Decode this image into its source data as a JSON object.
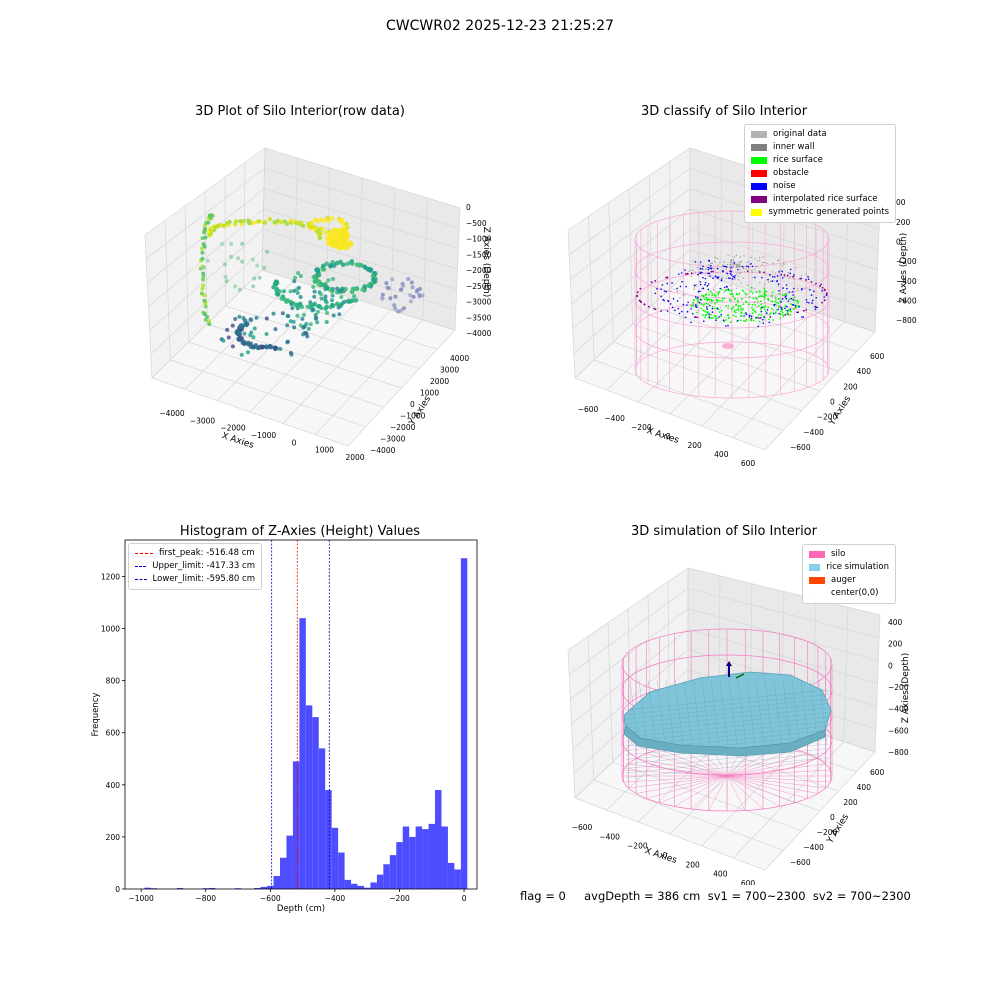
{
  "figure": {
    "suptitle": "CWCWR02 2025-12-23 21:25:27",
    "status_text": "flag = 0     avgDepth = 386 cm  sv1 = 700~2300  sv2 = 700~2300"
  },
  "chart_data": [
    {
      "type": "scatter",
      "projection": "3d",
      "title": "3D Plot of Silo Interior(row data)",
      "xlabel": "X Axies",
      "ylabel": "Y Axies",
      "zlabel": "Z Axies (Depth)",
      "x_ticks": [
        "−4000",
        "−3000",
        "−2000",
        "−1000",
        "0",
        "1000",
        "2000"
      ],
      "y_ticks": [
        "−4000",
        "−3000",
        "−2000",
        "−1000",
        "0",
        "1000",
        "2000",
        "3000",
        "4000"
      ],
      "z_ticks": [
        "0",
        "−500",
        "−1000",
        "−1500",
        "−2000",
        "−2500",
        "−3000",
        "−3500",
        "−4000"
      ],
      "xlim": [
        -4500,
        2500
      ],
      "ylim": [
        -4500,
        4500
      ],
      "zlim": [
        -4300,
        300
      ],
      "colormap": "viridis (by depth)",
      "grid": true
    },
    {
      "type": "scatter",
      "projection": "3d",
      "title": "3D classify of Silo Interior",
      "xlabel": "X Axies",
      "ylabel": "Y Axies",
      "zlabel": "Z Axies (Depth)",
      "x_ticks": [
        "−600",
        "−400",
        "−200",
        "0",
        "200",
        "400",
        "600"
      ],
      "y_ticks": [
        "−600",
        "−400",
        "−200",
        "0",
        "200",
        "400",
        "600"
      ],
      "z_ticks": [
        "200",
        "0",
        "−200",
        "−400",
        "−600",
        "−800"
      ],
      "z_extra_tick": "00",
      "legend": [
        {
          "label": "original data",
          "color": "#b3b3b3"
        },
        {
          "label": "inner wall",
          "color": "#808080"
        },
        {
          "label": "rice surface",
          "color": "#00ff00"
        },
        {
          "label": "obstacle",
          "color": "#ff0000"
        },
        {
          "label": "noise",
          "color": "#0000ff"
        },
        {
          "label": "interpolated rice surface",
          "color": "#800080"
        },
        {
          "label": "symmetric generated points",
          "color": "#ffff00"
        }
      ],
      "legend_position": "top-right",
      "grid": true
    },
    {
      "type": "bar",
      "title": "Histogram of Z-Axies (Height) Values",
      "xlabel": "Depth (cm)",
      "ylabel": "Frequency",
      "xlim": [
        -1050,
        40
      ],
      "ylim": [
        0,
        1340
      ],
      "x_ticks": [
        -1000,
        -800,
        -600,
        -400,
        -200,
        0
      ],
      "x_tick_labels": [
        "−1000",
        "−800",
        "−600",
        "−400",
        "−200",
        "0"
      ],
      "y_ticks": [
        0,
        200,
        400,
        600,
        800,
        1000,
        1200
      ],
      "bin_width": 20,
      "bins_left_edges": [
        -990,
        -970,
        -950,
        -930,
        -910,
        -890,
        -870,
        -850,
        -830,
        -810,
        -790,
        -770,
        -750,
        -730,
        -710,
        -690,
        -670,
        -650,
        -630,
        -610,
        -590,
        -570,
        -550,
        -530,
        -510,
        -490,
        -470,
        -450,
        -430,
        -410,
        -390,
        -370,
        -350,
        -330,
        -310,
        -290,
        -270,
        -250,
        -230,
        -210,
        -190,
        -170,
        -150,
        -130,
        -110,
        -90,
        -70,
        -50,
        -30,
        -10
      ],
      "counts": [
        5,
        3,
        0,
        0,
        0,
        4,
        0,
        0,
        0,
        3,
        4,
        0,
        0,
        0,
        3,
        0,
        0,
        4,
        8,
        12,
        50,
        120,
        205,
        490,
        1040,
        705,
        660,
        540,
        380,
        235,
        140,
        35,
        20,
        12,
        5,
        25,
        55,
        95,
        130,
        180,
        240,
        200,
        240,
        230,
        250,
        380,
        240,
        100,
        75,
        1270
      ],
      "bar_color": "#4d4dff",
      "vlines": [
        {
          "label": "first_peak: -516.48 cm",
          "x": -516.48,
          "color": "#ff0000"
        },
        {
          "label": "Upper_limit: -417.33 cm",
          "x": -417.33,
          "color": "#0000cc"
        },
        {
          "label": "Lower_limit: -595.80 cm",
          "x": -595.8,
          "color": "#0000cc"
        }
      ],
      "legend_position": "top-left",
      "grid": false
    },
    {
      "type": "surface",
      "projection": "3d",
      "title": "3D simulation of Silo Interior",
      "xlabel": "X Axies",
      "ylabel": "Y Axies",
      "zlabel": "Z Axies (Depth)",
      "x_ticks": [
        "−600",
        "−400",
        "−200",
        "0",
        "200",
        "400",
        "600"
      ],
      "y_ticks": [
        "−600",
        "−400",
        "−200",
        "0",
        "200",
        "400",
        "600"
      ],
      "z_ticks": [
        "400",
        "200",
        "0",
        "−200",
        "−400",
        "−600",
        "−800"
      ],
      "legend": [
        {
          "label": "silo",
          "color": "#ff69b4"
        },
        {
          "label": "rice simulation",
          "color": "#87ceeb"
        },
        {
          "label": "auger",
          "color": "#ff4500"
        },
        {
          "label": "center(0,0)",
          "color": ""
        }
      ],
      "legend_position": "top-right",
      "grid": true
    }
  ]
}
